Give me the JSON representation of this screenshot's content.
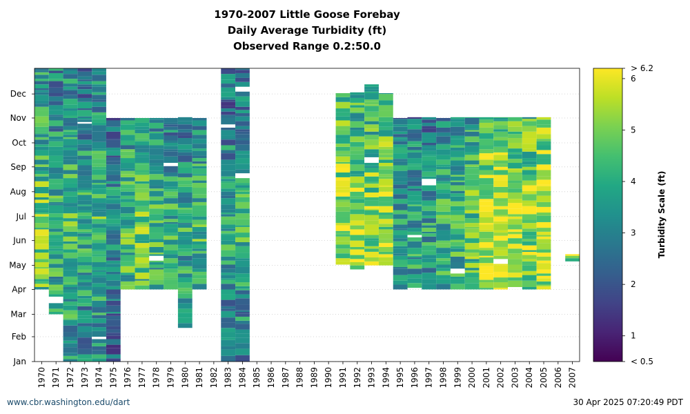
{
  "chart_data": {
    "type": "heatmap",
    "title": [
      "1970-2007 Little Goose Forebay",
      "Daily Average Turbidity (ft)",
      "Observed Range 0.2:50.0"
    ],
    "xlabel": "",
    "ylabel": "",
    "colorbar_label": "Turbidity Scale (ft)",
    "years": [
      "1970",
      "1971",
      "1972",
      "1973",
      "1974",
      "1975",
      "1976",
      "1977",
      "1978",
      "1979",
      "1980",
      "1981",
      "1982",
      "1983",
      "1984",
      "1985",
      "1986",
      "1987",
      "1988",
      "1989",
      "1990",
      "1991",
      "1992",
      "1993",
      "1994",
      "1995",
      "1996",
      "1997",
      "1998",
      "1999",
      "2000",
      "2001",
      "2002",
      "2003",
      "2004",
      "2005",
      "2006",
      "2007"
    ],
    "month_ticks": [
      "Jan",
      "Feb",
      "Mar",
      "Apr",
      "May",
      "Jun",
      "Jul",
      "Aug",
      "Sep",
      "Oct",
      "Nov",
      "Dec"
    ],
    "colorbar_ticks": [
      "> 6.2",
      "6",
      "5",
      "4",
      "3",
      "2",
      "1",
      "< 0.5"
    ],
    "color_range": [
      0.5,
      6.2
    ],
    "colormap": "viridis",
    "grid": true,
    "coverage_doy": [
      {
        "year": "1970",
        "start": 91,
        "end": 366,
        "mean": 4.2
      },
      {
        "year": "1971",
        "start": 60,
        "end": 366,
        "mean": 3.6
      },
      {
        "year": "1972",
        "start": 1,
        "end": 366,
        "mean": 3.9
      },
      {
        "year": "1973",
        "start": 1,
        "end": 366,
        "mean": 3.4
      },
      {
        "year": "1974",
        "start": 1,
        "end": 366,
        "mean": 3.8
      },
      {
        "year": "1975",
        "start": 1,
        "end": 304,
        "mean": 2.8
      },
      {
        "year": "1976",
        "start": 91,
        "end": 304,
        "mean": 3.8
      },
      {
        "year": "1977",
        "start": 91,
        "end": 304,
        "mean": 4.1
      },
      {
        "year": "1978",
        "start": 91,
        "end": 304,
        "mean": 3.6
      },
      {
        "year": "1979",
        "start": 91,
        "end": 304,
        "mean": 3.4
      },
      {
        "year": "1980",
        "start": 43,
        "end": 305,
        "mean": 3.3
      },
      {
        "year": "1981",
        "start": 91,
        "end": 304,
        "mean": 3.6
      },
      {
        "year": "1983",
        "start": 1,
        "end": 366,
        "mean": 3.2
      },
      {
        "year": "1984",
        "start": 1,
        "end": 366,
        "mean": 3.4
      },
      {
        "year": "1991",
        "start": 122,
        "end": 335,
        "mean": 4.9
      },
      {
        "year": "1992",
        "start": 116,
        "end": 336,
        "mean": 4.6
      },
      {
        "year": "1993",
        "start": 121,
        "end": 346,
        "mean": 4.5
      },
      {
        "year": "1994",
        "start": 121,
        "end": 335,
        "mean": 4.8
      },
      {
        "year": "1995",
        "start": 91,
        "end": 304,
        "mean": 3.2
      },
      {
        "year": "1996",
        "start": 93,
        "end": 305,
        "mean": 3.2
      },
      {
        "year": "1997",
        "start": 91,
        "end": 305,
        "mean": 3.1
      },
      {
        "year": "1998",
        "start": 91,
        "end": 304,
        "mean": 3.4
      },
      {
        "year": "1999",
        "start": 91,
        "end": 305,
        "mean": 3.5
      },
      {
        "year": "2000",
        "start": 91,
        "end": 305,
        "mean": 4.0
      },
      {
        "year": "2001",
        "start": 91,
        "end": 305,
        "mean": 5.1
      },
      {
        "year": "2002",
        "start": 91,
        "end": 305,
        "mean": 5.2
      },
      {
        "year": "2003",
        "start": 91,
        "end": 305,
        "mean": 5.0
      },
      {
        "year": "2004",
        "start": 91,
        "end": 305,
        "mean": 4.7
      },
      {
        "year": "2005",
        "start": 91,
        "end": 305,
        "mean": 5.2
      },
      {
        "year": "2007",
        "start": 126,
        "end": 134,
        "mean": 4.8
      }
    ]
  },
  "footer": {
    "left": "www.cbr.washington.edu/dart",
    "right": "30 Apr 2025 07:20:49 PDT"
  }
}
